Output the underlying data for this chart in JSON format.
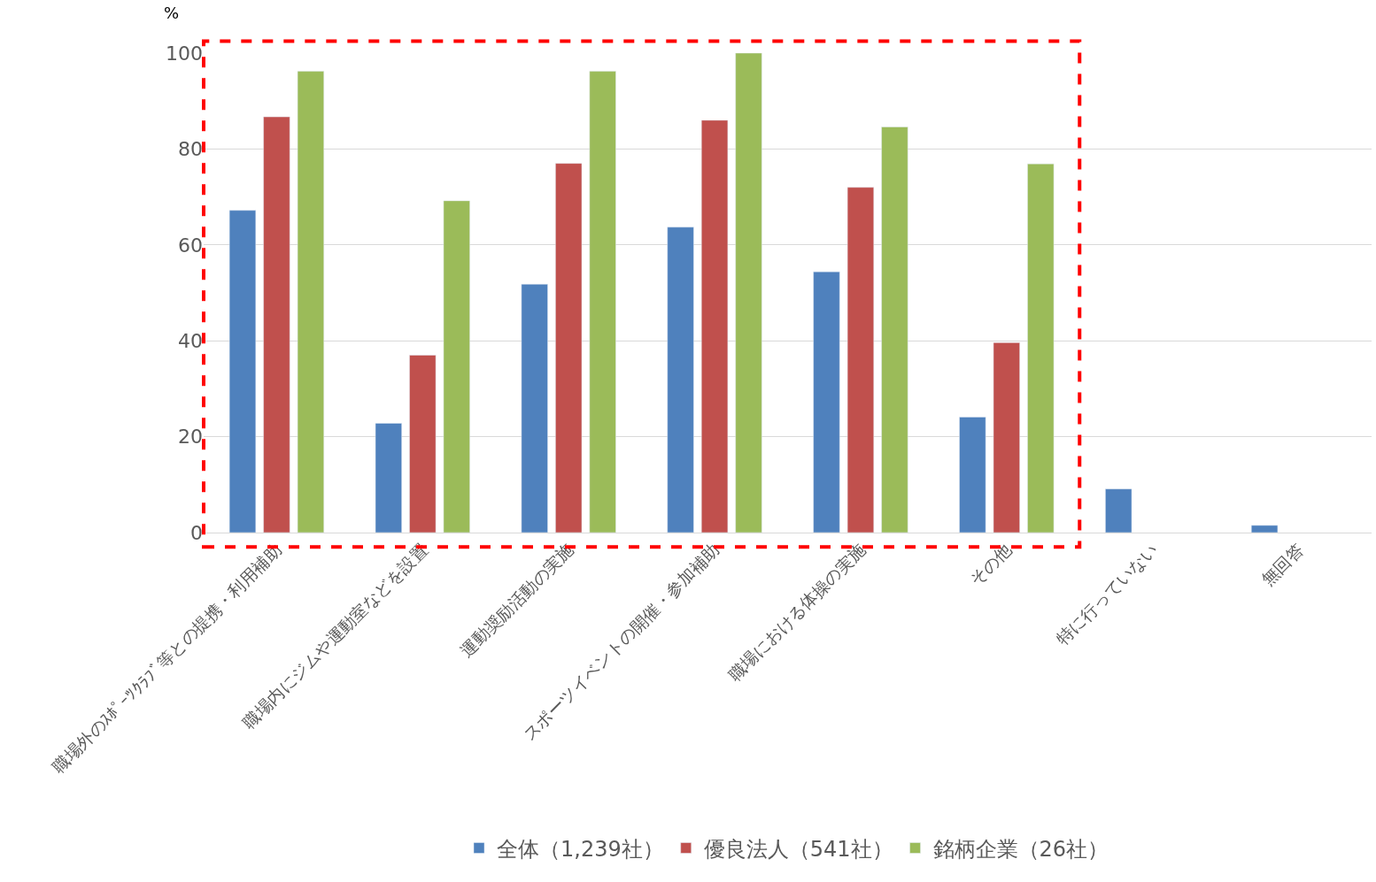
{
  "chart_data": {
    "type": "bar",
    "ylabel": "%",
    "categories": [
      "職場外のｽﾎﾟｰﾂｸﾗﾌﾞ等との提携・利用補助",
      "職場内にジムや運動室などを設置",
      "運動奨励活動の実施",
      "スポーツイベントの開催・参加補助",
      "職場における体操の実施",
      "その他",
      "特に行っていない",
      "無回答"
    ],
    "series": [
      {
        "name": "全体（1,239社）",
        "color": "#4f81bd",
        "values": [
          67.2,
          22.8,
          51.8,
          63.7,
          54.4,
          24.1,
          9.1,
          1.5
        ]
      },
      {
        "name": "優良法人（541社）",
        "color": "#c0504d",
        "values": [
          86.7,
          37.0,
          77.0,
          86.0,
          72.0,
          39.6,
          null,
          null
        ]
      },
      {
        "name": "銘柄企業（26社）",
        "color": "#9bbb59",
        "values": [
          96.2,
          69.2,
          96.2,
          100,
          84.6,
          76.9,
          null,
          null
        ]
      }
    ],
    "ylim": [
      0,
      100
    ],
    "yticks": [
      0,
      20,
      40,
      60,
      80,
      100
    ],
    "grid": "y",
    "legend": "bottom"
  }
}
